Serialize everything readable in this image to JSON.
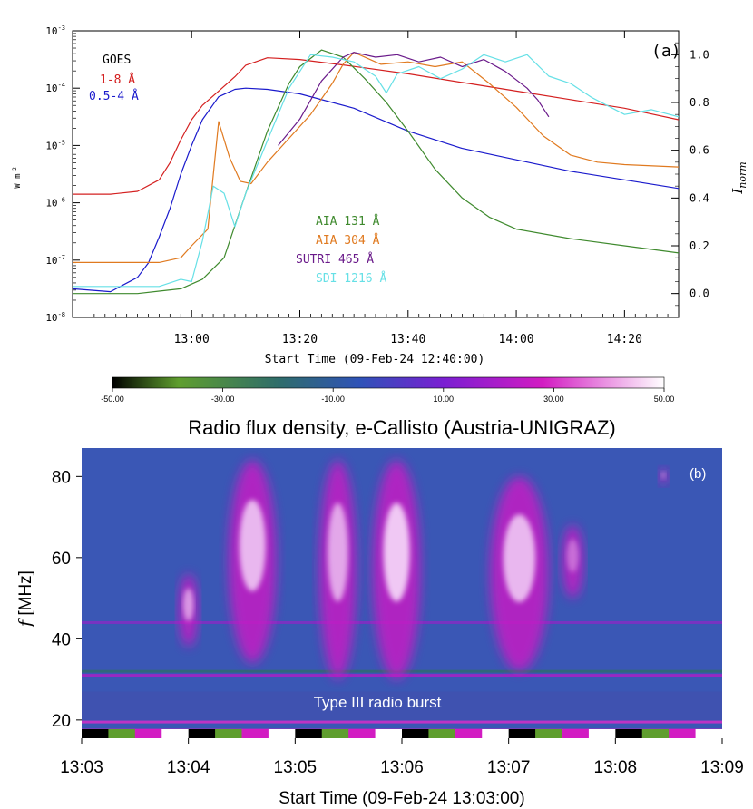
{
  "chart_data": [
    {
      "type": "line",
      "panel_label": "(a)",
      "xlabel": "Start Time (09-Feb-24 12:40:00)",
      "ylabel_left": "W m",
      "ylabel_left_sup": "-2",
      "ylabel_right": "I",
      "ylabel_right_sub": "norm",
      "xlim": [
        -2,
        110
      ],
      "x_ticks": [
        {
          "v": 20,
          "label": "13:00"
        },
        {
          "v": 40,
          "label": "13:20"
        },
        {
          "v": 60,
          "label": "13:40"
        },
        {
          "v": 80,
          "label": "14:00"
        },
        {
          "v": 100,
          "label": "14:20"
        }
      ],
      "ylim_left_log": [
        -8,
        -3
      ],
      "y_ticks_left": [
        {
          "v": -3,
          "base": "10",
          "exp": "-3"
        },
        {
          "v": -4,
          "base": "10",
          "exp": "-4"
        },
        {
          "v": -5,
          "base": "10",
          "exp": "-5"
        },
        {
          "v": -6,
          "base": "10",
          "exp": "-6"
        },
        {
          "v": -7,
          "base": "10",
          "exp": "-7"
        },
        {
          "v": -8,
          "base": "10",
          "exp": "-8"
        }
      ],
      "ylim_right": [
        -0.1,
        1.1
      ],
      "y_ticks_right": [
        {
          "v": 0.0,
          "label": "0.0"
        },
        {
          "v": 0.2,
          "label": "0.2"
        },
        {
          "v": 0.4,
          "label": "0.4"
        },
        {
          "v": 0.6,
          "label": "0.6"
        },
        {
          "v": 0.8,
          "label": "0.8"
        },
        {
          "v": 1.0,
          "label": "1.0"
        }
      ],
      "legend_goes_title": "GOES",
      "series": [
        {
          "name": "1-8 Å",
          "axis": "left",
          "color": "#d42020",
          "x": [
            -2,
            5,
            10,
            14,
            16,
            18,
            20,
            22,
            25,
            28,
            30,
            34,
            40,
            50,
            60,
            70,
            80,
            90,
            100,
            110
          ],
          "y": [
            -5.85,
            -5.85,
            -5.8,
            -5.6,
            -5.3,
            -4.9,
            -4.55,
            -4.3,
            -4.05,
            -3.8,
            -3.6,
            -3.47,
            -3.5,
            -3.62,
            -3.75,
            -3.9,
            -4.05,
            -4.2,
            -4.35,
            -4.55
          ]
        },
        {
          "name": "0.5-4 Å",
          "axis": "left",
          "color": "#1a1acc",
          "x": [
            -2,
            5,
            10,
            12,
            14,
            16,
            18,
            20,
            22,
            25,
            28,
            30,
            34,
            40,
            50,
            60,
            70,
            80,
            90,
            100,
            110
          ],
          "y": [
            -7.5,
            -7.55,
            -7.3,
            -7.05,
            -6.6,
            -6.1,
            -5.5,
            -5.0,
            -4.55,
            -4.15,
            -4.02,
            -4.0,
            -4.02,
            -4.1,
            -4.35,
            -4.75,
            -5.05,
            -5.25,
            -5.45,
            -5.6,
            -5.75
          ]
        },
        {
          "name": "AIA 131 Å",
          "axis": "right",
          "color": "#3f8a2e",
          "x": [
            -2,
            10,
            14,
            18,
            22,
            26,
            30,
            34,
            38,
            40,
            44,
            48,
            52,
            56,
            60,
            65,
            70,
            75,
            80,
            90,
            100,
            110
          ],
          "y": [
            0.0,
            0.0,
            0.01,
            0.02,
            0.06,
            0.15,
            0.42,
            0.68,
            0.88,
            0.95,
            1.02,
            0.99,
            0.9,
            0.8,
            0.68,
            0.52,
            0.4,
            0.32,
            0.27,
            0.23,
            0.2,
            0.17
          ]
        },
        {
          "name": "AIA 304 Å",
          "axis": "right",
          "color": "#e07a20",
          "x": [
            -2,
            10,
            14,
            18,
            20,
            23,
            25,
            27,
            29,
            31,
            34,
            38,
            42,
            46,
            48,
            50,
            55,
            60,
            65,
            70,
            75,
            80,
            85,
            90,
            95,
            100,
            110
          ],
          "y": [
            0.13,
            0.13,
            0.13,
            0.15,
            0.2,
            0.27,
            0.72,
            0.57,
            0.47,
            0.46,
            0.55,
            0.65,
            0.75,
            0.88,
            0.96,
            1.01,
            0.96,
            0.97,
            0.95,
            0.97,
            0.88,
            0.78,
            0.66,
            0.58,
            0.55,
            0.54,
            0.53
          ]
        },
        {
          "name": "SUTRI 465 Å",
          "axis": "right",
          "color": "#6a1a8a",
          "x": [
            36,
            40,
            44,
            48,
            50,
            54,
            58,
            62,
            66,
            70,
            74,
            78,
            82,
            84,
            86
          ],
          "y": [
            0.62,
            0.73,
            0.89,
            0.99,
            1.01,
            0.99,
            1.0,
            0.97,
            0.99,
            0.95,
            0.98,
            0.93,
            0.86,
            0.81,
            0.74
          ]
        },
        {
          "name": "SDI 1216 Å",
          "axis": "right",
          "color": "#66e0e6",
          "x": [
            -2,
            14,
            18,
            20,
            22,
            24,
            26,
            28,
            30,
            34,
            38,
            42,
            46,
            50,
            54,
            56,
            58,
            62,
            66,
            70,
            74,
            78,
            82,
            86,
            90,
            94,
            100,
            105,
            110
          ],
          "y": [
            0.03,
            0.03,
            0.06,
            0.05,
            0.22,
            0.45,
            0.42,
            0.28,
            0.42,
            0.64,
            0.86,
            1.0,
            0.99,
            0.97,
            0.91,
            0.84,
            0.92,
            0.95,
            0.9,
            0.94,
            1.0,
            0.97,
            1.0,
            0.91,
            0.88,
            0.82,
            0.75,
            0.77,
            0.74
          ]
        }
      ]
    },
    {
      "type": "heatmap",
      "title": "Radio flux density, e-Callisto (Austria-UNIGRAZ)",
      "panel_label": "(b)",
      "xlabel": "Start Time (09-Feb-24 13:03:00)",
      "ylabel_italic": "f",
      "ylabel_rest": " [MHz]",
      "xlim": [
        0,
        6
      ],
      "x_ticks": [
        {
          "v": 0,
          "label": "13:03"
        },
        {
          "v": 1,
          "label": "13:04"
        },
        {
          "v": 2,
          "label": "13:05"
        },
        {
          "v": 3,
          "label": "13:06"
        },
        {
          "v": 4,
          "label": "13:07"
        },
        {
          "v": 5,
          "label": "13:08"
        },
        {
          "v": 6,
          "label": "13:09"
        }
      ],
      "ylim": [
        15.5,
        87
      ],
      "y_ticks": [
        {
          "v": 20,
          "label": "20"
        },
        {
          "v": 40,
          "label": "40"
        },
        {
          "v": 60,
          "label": "60"
        },
        {
          "v": 80,
          "label": "80"
        }
      ],
      "annotation": "Type III radio burst",
      "colorbar": {
        "min": -50,
        "max": 50,
        "ticks": [
          {
            "v": -50,
            "label": "-50.00"
          },
          {
            "v": -30,
            "label": "-30.00"
          },
          {
            "v": -10,
            "label": "-10.00"
          },
          {
            "v": 10,
            "label": "10.00"
          },
          {
            "v": 30,
            "label": "30.00"
          },
          {
            "v": 50,
            "label": "50.00"
          }
        ],
        "stops": [
          "#000000",
          "#5f9e2e",
          "#2f6d6a",
          "#2f52b8",
          "#7a1fd2",
          "#d21cc2",
          "#ffffff"
        ]
      },
      "bursts": [
        {
          "t": 1.0,
          "f0": 38,
          "f1": 56,
          "w": 0.18,
          "peak": 35
        },
        {
          "t": 1.6,
          "f0": 34,
          "f1": 84,
          "w": 0.45,
          "peak": 45
        },
        {
          "t": 2.4,
          "f0": 30,
          "f1": 84,
          "w": 0.35,
          "peak": 40
        },
        {
          "t": 2.95,
          "f0": 30,
          "f1": 84,
          "w": 0.45,
          "peak": 50
        },
        {
          "t": 4.1,
          "f0": 32,
          "f1": 80,
          "w": 0.55,
          "peak": 45
        },
        {
          "t": 4.6,
          "f0": 50,
          "f1": 68,
          "w": 0.2,
          "peak": 22
        },
        {
          "t": 5.45,
          "f0": 78,
          "f1": 82,
          "w": 0.08,
          "peak": 25
        }
      ]
    }
  ]
}
